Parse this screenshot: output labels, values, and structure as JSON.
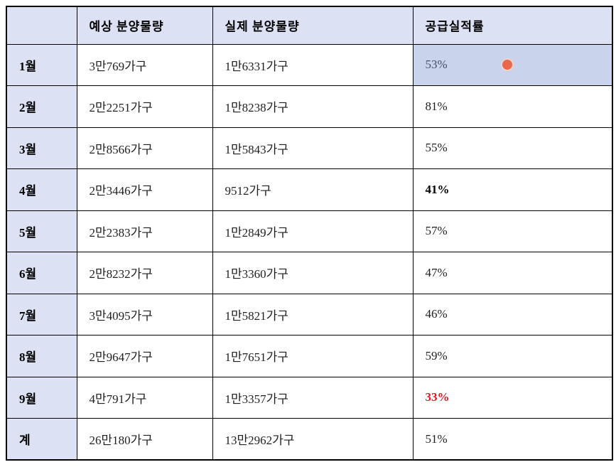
{
  "chart_data": {
    "type": "table",
    "title": "",
    "columns": [
      "",
      "예상 분양물량",
      "실제 분양물량",
      "공급실적률"
    ],
    "rows": [
      {
        "month": "1월",
        "expected": "3만769가구",
        "actual": "1만6331가구",
        "rate": "53%",
        "highlighted": true,
        "marker": "red-dot"
      },
      {
        "month": "2월",
        "expected": "2만2251가구",
        "actual": "1만8238가구",
        "rate": "81%"
      },
      {
        "month": "3월",
        "expected": "2만8566가구",
        "actual": "1만5843가구",
        "rate": "55%"
      },
      {
        "month": "4월",
        "expected": "2만3446가구",
        "actual": "9512가구",
        "rate": "41%",
        "rate_bold": true
      },
      {
        "month": "5월",
        "expected": "2만2383가구",
        "actual": "1만2849가구",
        "rate": "57%"
      },
      {
        "month": "6월",
        "expected": "2만8232가구",
        "actual": "1만3360가구",
        "rate": "47%"
      },
      {
        "month": "7월",
        "expected": "3만4095가구",
        "actual": "1만5821가구",
        "rate": "46%"
      },
      {
        "month": "8월",
        "expected": "2만9647가구",
        "actual": "1만7651가구",
        "rate": "59%"
      },
      {
        "month": "9월",
        "expected": "4만791가구",
        "actual": "1만3357가구",
        "rate": "33%",
        "rate_bold": true,
        "rate_color": "#e1181f"
      },
      {
        "month": "계",
        "expected": "26만180가구",
        "actual": "13만2962가구",
        "rate": "51%"
      }
    ]
  },
  "colors": {
    "header_bg": "#dce2f4",
    "month_column_bg": "#dce2f4",
    "body_bg": "#ffffff",
    "border": "#000000",
    "text": "#1f1f1f",
    "highlight_cell_bg": "#c9d3eb",
    "highlight_text": "#454f66",
    "red_text": "#e1181f",
    "dot": "#e8694c"
  }
}
